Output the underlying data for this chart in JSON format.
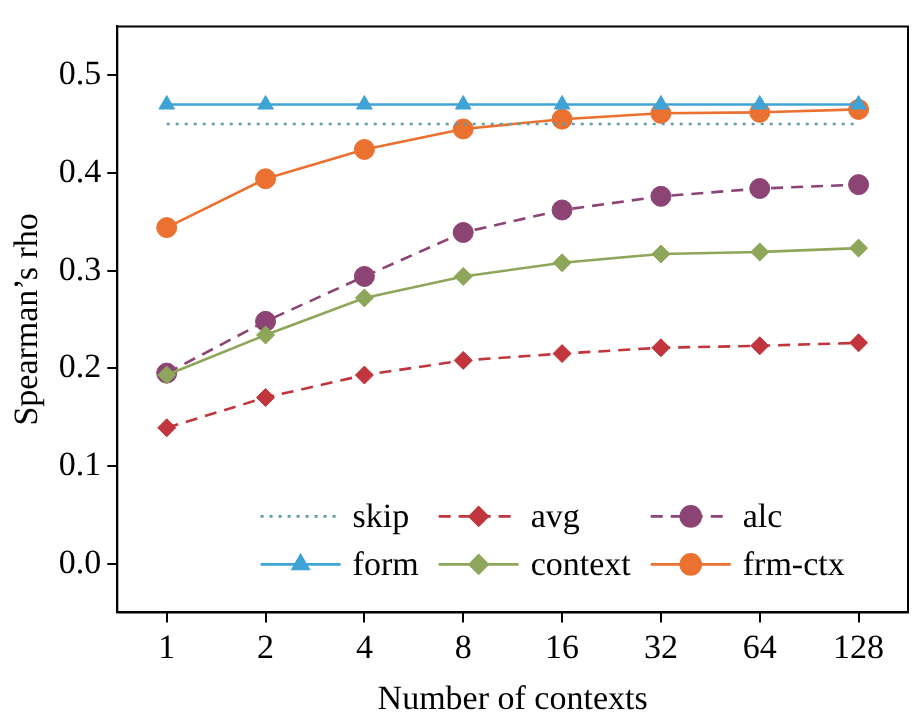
{
  "chart_data": {
    "type": "line",
    "xlabel": "Number of contexts",
    "ylabel": "Spearman’s rho",
    "categories": [
      "1",
      "2",
      "4",
      "8",
      "16",
      "32",
      "64",
      "128"
    ],
    "ylim": [
      -0.05,
      0.55
    ],
    "yticks": [
      {
        "value": 0,
        "label": "0.0"
      },
      {
        "value": 0.1,
        "label": "0.1"
      },
      {
        "value": 0.2,
        "label": "0.2"
      },
      {
        "value": 0.3,
        "label": "0.3"
      },
      {
        "value": 0.4,
        "label": "0.4"
      },
      {
        "value": 0.5,
        "label": "0.5"
      }
    ],
    "grid": false,
    "legend": "bottom",
    "series": [
      {
        "name": "skip",
        "color": "#5f9ea8",
        "marker": "none",
        "line_style": "dotted",
        "values": [
          0.45,
          0.45,
          0.45,
          0.45,
          0.45,
          0.45,
          0.45,
          0.45
        ]
      },
      {
        "name": "form",
        "color": "#3fa3d6",
        "marker": "triangle",
        "line_style": "solid",
        "values": [
          0.47,
          0.47,
          0.47,
          0.47,
          0.47,
          0.47,
          0.47,
          0.47
        ]
      },
      {
        "name": "avg",
        "color": "#c0363c",
        "marker": "diamond",
        "line_style": "dashed",
        "values": [
          0.139,
          0.17,
          0.193,
          0.208,
          0.215,
          0.221,
          0.223,
          0.226
        ]
      },
      {
        "name": "context",
        "color": "#8ea65a",
        "marker": "diamond",
        "line_style": "solid",
        "values": [
          0.193,
          0.234,
          0.272,
          0.294,
          0.308,
          0.317,
          0.319,
          0.323
        ]
      },
      {
        "name": "alc",
        "color": "#8c4474",
        "marker": "circle",
        "line_style": "dashed",
        "values": [
          0.195,
          0.248,
          0.294,
          0.339,
          0.362,
          0.376,
          0.384,
          0.388
        ]
      },
      {
        "name": "frm-ctx",
        "color": "#ea7130",
        "marker": "circle",
        "line_style": "solid",
        "values": [
          0.344,
          0.394,
          0.424,
          0.445,
          0.455,
          0.461,
          0.462,
          0.465
        ]
      }
    ]
  }
}
